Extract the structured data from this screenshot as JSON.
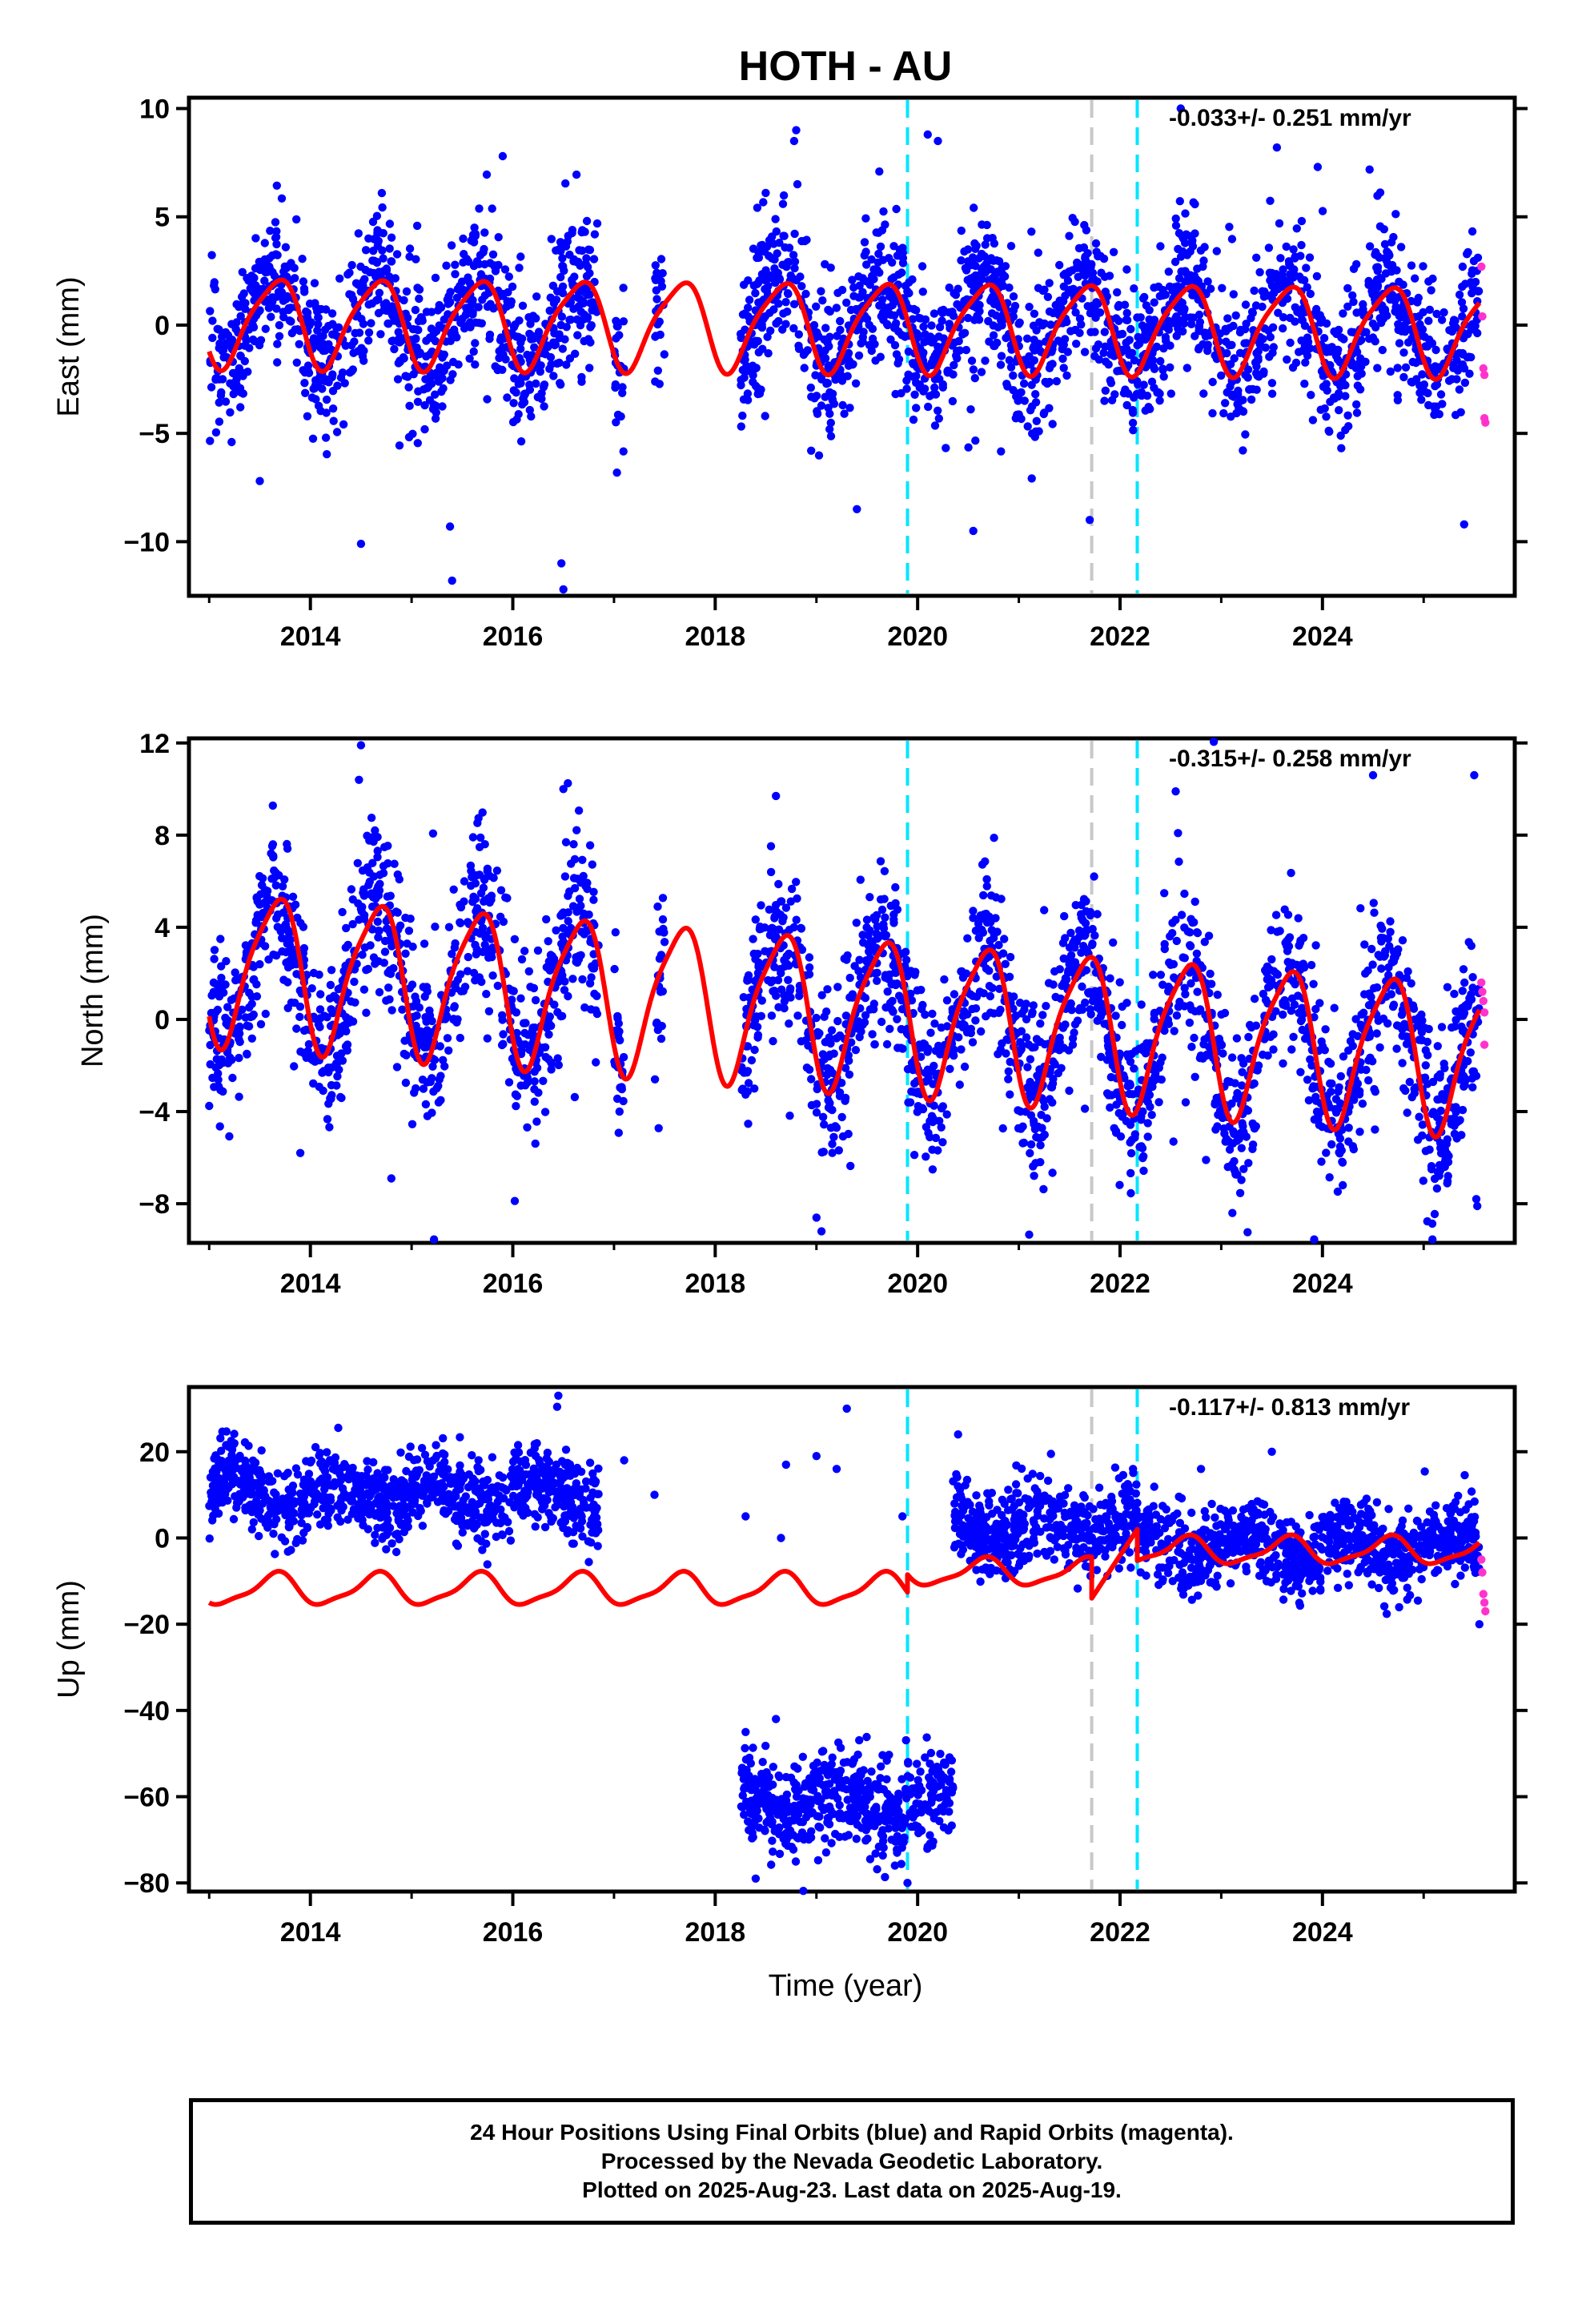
{
  "chart_data": [
    {
      "type": "scatter",
      "title": "HOTH - AU",
      "xlabel": "",
      "ylabel": "East (mm)",
      "xlim": [
        2012.8,
        2025.9
      ],
      "ylim": [
        -12.5,
        10.5
      ],
      "xticks": [
        2014,
        2016,
        2018,
        2020,
        2022,
        2024
      ],
      "xticklabels": [
        "2014",
        "2016",
        "2018",
        "2020",
        "2022",
        "2024"
      ],
      "yticks": [
        10,
        5,
        0,
        -5,
        -10
      ],
      "yticklabels": [
        "10",
        "5",
        "0",
        "−5",
        "−10"
      ],
      "rate_label": "-0.033+/- 0.251 mm/yr",
      "grid": false,
      "series": [
        {
          "name": "Final Orbits",
          "color": "#0000ff",
          "kind": "points"
        },
        {
          "name": "Rapid Orbits",
          "color": "#ff33cc",
          "kind": "points"
        },
        {
          "name": "model",
          "color": "#ff0000",
          "kind": "line"
        }
      ],
      "data_segments": [
        [
          2013.0,
          2016.85
        ],
        [
          2017.0,
          2017.1
        ],
        [
          2017.4,
          2017.5
        ],
        [
          2018.25,
          2025.55
        ]
      ],
      "seasonal": {
        "annual_amplitude": 2.0,
        "offset": 0.0,
        "trend": -0.033
      },
      "scatter_sd": 1.6,
      "outliers": [
        {
          "x": 2016.5,
          "y": -12.2
        },
        {
          "x": 2016.48,
          "y": -11.0
        },
        {
          "x": 2015.4,
          "y": -11.8
        },
        {
          "x": 2015.38,
          "y": -9.3
        },
        {
          "x": 2014.5,
          "y": -10.1
        },
        {
          "x": 2015.9,
          "y": 7.8
        },
        {
          "x": 2018.8,
          "y": 9.0
        },
        {
          "x": 2018.78,
          "y": 8.5
        },
        {
          "x": 2020.1,
          "y": 8.8
        },
        {
          "x": 2020.2,
          "y": 8.5
        },
        {
          "x": 2020.55,
          "y": -9.5
        },
        {
          "x": 2021.7,
          "y": -9.0
        },
        {
          "x": 2022.6,
          "y": 10.0
        },
        {
          "x": 2023.55,
          "y": 8.2
        },
        {
          "x": 2025.4,
          "y": -9.2
        },
        {
          "x": 2013.5,
          "y": -7.2
        },
        {
          "x": 2019.4,
          "y": -8.5
        }
      ],
      "rapid_points": [
        {
          "x": 2025.57,
          "y": 2.7
        },
        {
          "x": 2025.58,
          "y": 0.4
        },
        {
          "x": 2025.59,
          "y": -2.0
        },
        {
          "x": 2025.6,
          "y": -2.3
        },
        {
          "x": 2025.6,
          "y": -4.3
        },
        {
          "x": 2025.61,
          "y": -4.5
        }
      ],
      "vlines": [
        {
          "x": 2019.9,
          "color": "#00e5ff",
          "style": "dashed"
        },
        {
          "x": 2021.72,
          "color": "#c8c8c8",
          "style": "dashed"
        },
        {
          "x": 2022.17,
          "color": "#00e5ff",
          "style": "dashed"
        }
      ]
    },
    {
      "type": "scatter",
      "title": "",
      "xlabel": "",
      "ylabel": "North (mm)",
      "xlim": [
        2012.8,
        2025.9
      ],
      "ylim": [
        -9.7,
        12.2
      ],
      "xticks": [
        2014,
        2016,
        2018,
        2020,
        2022,
        2024
      ],
      "xticklabels": [
        "2014",
        "2016",
        "2018",
        "2020",
        "2022",
        "2024"
      ],
      "yticks": [
        12,
        8,
        4,
        0,
        -4,
        -8
      ],
      "yticklabels": [
        "12",
        "8",
        "4",
        "0",
        "−4",
        "−8"
      ],
      "rate_label": "-0.315+/- 0.258 mm/yr",
      "grid": false,
      "series": [
        {
          "name": "Final Orbits",
          "color": "#0000ff",
          "kind": "points"
        },
        {
          "name": "Rapid Orbits",
          "color": "#ff33cc",
          "kind": "points"
        },
        {
          "name": "model",
          "color": "#ff0000",
          "kind": "line"
        }
      ],
      "data_segments": [
        [
          2013.0,
          2016.85
        ],
        [
          2017.0,
          2017.1
        ],
        [
          2017.4,
          2017.5
        ],
        [
          2018.25,
          2025.55
        ]
      ],
      "seasonal": {
        "annual_amplitude": 3.2,
        "offset": 0.5,
        "trend": -0.315
      },
      "scatter_sd": 1.7,
      "outliers": [
        {
          "x": 2014.5,
          "y": 11.9
        },
        {
          "x": 2014.48,
          "y": 10.4
        },
        {
          "x": 2016.5,
          "y": 10.0
        },
        {
          "x": 2018.6,
          "y": 9.7
        },
        {
          "x": 2019.05,
          "y": -9.2
        },
        {
          "x": 2019.0,
          "y": -8.6
        },
        {
          "x": 2022.55,
          "y": 9.9
        },
        {
          "x": 2024.5,
          "y": 10.6
        },
        {
          "x": 2025.5,
          "y": 10.6
        },
        {
          "x": 2025.53,
          "y": -8.1
        },
        {
          "x": 2025.52,
          "y": -7.8
        },
        {
          "x": 2013.9,
          "y": -5.8
        },
        {
          "x": 2022.85,
          "y": -6.1
        },
        {
          "x": 2014.8,
          "y": -6.9
        }
      ],
      "rapid_points": [
        {
          "x": 2025.57,
          "y": 1.6
        },
        {
          "x": 2025.58,
          "y": 1.2
        },
        {
          "x": 2025.59,
          "y": 0.8
        },
        {
          "x": 2025.6,
          "y": 0.3
        },
        {
          "x": 2025.6,
          "y": -1.1
        }
      ],
      "vlines": [
        {
          "x": 2019.9,
          "color": "#00e5ff",
          "style": "dashed"
        },
        {
          "x": 2021.72,
          "color": "#c8c8c8",
          "style": "dashed"
        },
        {
          "x": 2022.17,
          "color": "#00e5ff",
          "style": "dashed"
        }
      ]
    },
    {
      "type": "scatter",
      "title": "",
      "xlabel": "Time (year)",
      "ylabel": "Up (mm)",
      "xlim": [
        2012.8,
        2025.9
      ],
      "ylim": [
        -82,
        35
      ],
      "xticks": [
        2014,
        2016,
        2018,
        2020,
        2022,
        2024
      ],
      "xticklabels": [
        "2014",
        "2016",
        "2018",
        "2020",
        "2022",
        "2024"
      ],
      "yticks": [
        20,
        0,
        -20,
        -40,
        -60,
        -80
      ],
      "yticklabels": [
        "20",
        "0",
        "−20",
        "−40",
        "−60",
        "−80"
      ],
      "rate_label": "-0.117+/- 0.813 mm/yr",
      "grid": false,
      "series": [
        {
          "name": "Final Orbits",
          "color": "#0000ff",
          "kind": "points"
        },
        {
          "name": "Rapid Orbits",
          "color": "#ff33cc",
          "kind": "points"
        },
        {
          "name": "model",
          "color": "#ff0000",
          "kind": "line"
        }
      ],
      "clusters": [
        {
          "x0": 2013.0,
          "x1": 2016.85,
          "center": 10,
          "sd": 4.5
        },
        {
          "x0": 2018.25,
          "x1": 2020.35,
          "center": -61,
          "sd": 5.5
        },
        {
          "x0": 2020.35,
          "x1": 2022.2,
          "center": 3,
          "sd": 5
        },
        {
          "x0": 2022.2,
          "x1": 2025.55,
          "center": -2,
          "sd": 4.5
        }
      ],
      "outliers": [
        {
          "x": 2016.45,
          "y": 33
        },
        {
          "x": 2019.3,
          "y": 30
        },
        {
          "x": 2017.1,
          "y": 18
        },
        {
          "x": 2017.4,
          "y": 10
        },
        {
          "x": 2018.3,
          "y": 5
        },
        {
          "x": 2018.7,
          "y": 17
        },
        {
          "x": 2019.0,
          "y": 19
        },
        {
          "x": 2019.2,
          "y": 16
        },
        {
          "x": 2019.85,
          "y": 5
        },
        {
          "x": 2018.65,
          "y": 0
        },
        {
          "x": 2020.4,
          "y": 24
        },
        {
          "x": 2023.5,
          "y": 20
        },
        {
          "x": 2022.8,
          "y": 16
        },
        {
          "x": 2025.55,
          "y": -20
        },
        {
          "x": 2018.6,
          "y": -42
        },
        {
          "x": 2018.3,
          "y": -45
        },
        {
          "x": 2019.9,
          "y": -80
        },
        {
          "x": 2018.4,
          "y": -79
        }
      ],
      "rapid_points": [
        {
          "x": 2025.57,
          "y": -5
        },
        {
          "x": 2025.58,
          "y": -8
        },
        {
          "x": 2025.59,
          "y": -13
        },
        {
          "x": 2025.6,
          "y": -15
        },
        {
          "x": 2025.61,
          "y": -17
        }
      ],
      "model_segments": [
        {
          "x0": 2013.0,
          "x1": 2019.9,
          "offset": -12,
          "amp": 3.5,
          "k": 0.28
        },
        {
          "x0": 2019.9,
          "x1": 2021.72,
          "offset": -8,
          "amp": 3,
          "k": 0.28
        },
        {
          "x0": 2021.72,
          "x1": 2022.17,
          "offset": -14,
          "amp": 0,
          "k": 0,
          "ramp_to": 2
        },
        {
          "x0": 2022.17,
          "x1": 2025.55,
          "offset": -3,
          "amp": 3,
          "k": 0.3
        }
      ],
      "vlines": [
        {
          "x": 2019.9,
          "color": "#00e5ff",
          "style": "dashed"
        },
        {
          "x": 2021.72,
          "color": "#c8c8c8",
          "style": "dashed"
        },
        {
          "x": 2022.17,
          "color": "#00e5ff",
          "style": "dashed"
        }
      ]
    }
  ],
  "footer": {
    "line1": "24 Hour Positions Using Final Orbits (blue) and Rapid Orbits (magenta).",
    "line2": "Processed by the Nevada Geodetic Laboratory.",
    "line3": "Plotted on 2025-Aug-23. Last data on 2025-Aug-19."
  }
}
